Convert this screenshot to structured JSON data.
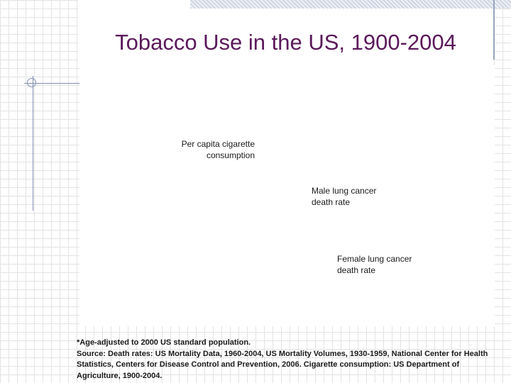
{
  "slide": {
    "title": "Tobacco Use in the US, 1900-2004"
  },
  "chart_data": {
    "type": "line",
    "title": "Tobacco Use in the US, 1900-2004",
    "series": [
      {
        "name": "Per capita cigarette consumption"
      },
      {
        "name": "Male lung cancer death rate"
      },
      {
        "name": "Female lung cancer death rate"
      }
    ],
    "annotations": {
      "per_capita_line1": "Per capita cigarette",
      "per_capita_line2": "consumption",
      "male_line1": "Male lung cancer",
      "male_line2": "death rate",
      "female_line1": "Female lung cancer",
      "female_line2": "death rate"
    }
  },
  "footnote": {
    "age_adjusted": "*Age-adjusted to 2000 US standard population.",
    "source": "Source: Death rates: US Mortality Data, 1960-2004, US Mortality Volumes, 1930-1959, National Center for Health Statistics, Centers for Disease Control and Prevention, 2006. Cigarette consumption: US Department of Agriculture, 1900-2004."
  },
  "colors": {
    "title": "#5a1a5a",
    "grid": "#e3e3e3",
    "accent_lines": "#8390b0"
  }
}
